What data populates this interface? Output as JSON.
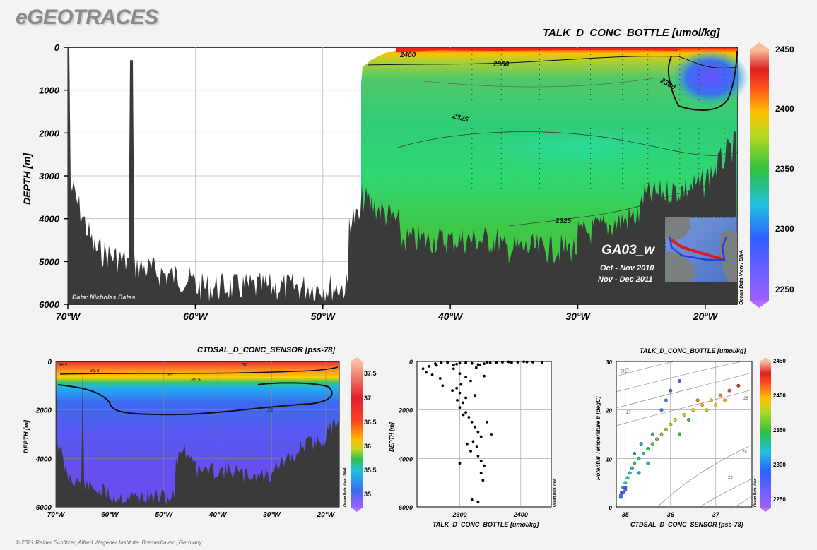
{
  "brand": "eGEOTRACES",
  "copyright": "© 2021 Reiner Schlitzer, Alfred Wegener Institute, Bremerhaven, Germany",
  "colors": {
    "land": "#3a3a3a",
    "background": "#f3f3f3",
    "contour": "#111111"
  },
  "chart_data": [
    {
      "type": "heatmap",
      "panel": "main-section",
      "title": "TALK_D_CONC_BOTTLE [umol/kg]",
      "ylabel": "DEPTH [m]",
      "xlabel": "",
      "x_ticks": [
        "70°W",
        "60°W",
        "50°W",
        "40°W",
        "30°W",
        "20°W"
      ],
      "x_tick_values": [
        -70,
        -60,
        -50,
        -40,
        -30,
        -20
      ],
      "y_ticks": [
        "0",
        "1000",
        "2000",
        "3000",
        "4000",
        "5000",
        "6000"
      ],
      "xlim": [
        -70,
        -17.5
      ],
      "ylim": [
        6000,
        0
      ],
      "contour_labels": [
        "2400",
        "2350",
        "2325",
        "2300",
        "2325"
      ],
      "colorbar": {
        "min": 2240,
        "max": 2450,
        "ticks": [
          "2250",
          "2300",
          "2350",
          "2400",
          "2450"
        ]
      },
      "section_label": "GA03_w",
      "cruise_dates": [
        "Oct - Nov 2010",
        "Nov - Dec 2011"
      ],
      "credit": "Data: Nicholas Bates",
      "watermark": "Ocean Data View / DIVA",
      "grid": true
    },
    {
      "type": "heatmap",
      "panel": "salinity-section",
      "title": "CTDSAL_D_CONC_SENSOR [pss-78]",
      "ylabel": "DEPTH [m]",
      "x_ticks": [
        "70°W",
        "60°W",
        "50°W",
        "40°W",
        "30°W",
        "20°W"
      ],
      "y_ticks": [
        "0",
        "2000",
        "4000",
        "6000"
      ],
      "contour_labels": [
        "36.5",
        "36.5",
        "37",
        "36",
        "35.5",
        "35"
      ],
      "colorbar": {
        "min": 34.7,
        "max": 37.8,
        "ticks": [
          "35",
          "35.5",
          "36",
          "36.5",
          "37",
          "37.5"
        ]
      },
      "watermark": "Ocean Data View / DIVA",
      "grid": true
    },
    {
      "type": "scatter",
      "panel": "alkalinity-profile",
      "xlabel": "TALK_D_CONC_BOTTLE [umol/kg]",
      "ylabel": "DEPTH [m]",
      "x_ticks": [
        "2300",
        "2400"
      ],
      "y_ticks": [
        "0",
        "2000",
        "4000",
        "6000"
      ],
      "xlim": [
        2230,
        2450
      ],
      "ylim": [
        6000,
        0
      ],
      "watermark": "Ocean Data View",
      "points": [
        [
          2405,
          10
        ],
        [
          2410,
          20
        ],
        [
          2395,
          30
        ],
        [
          2380,
          15
        ],
        [
          2360,
          40
        ],
        [
          2350,
          60
        ],
        [
          2340,
          90
        ],
        [
          2330,
          120
        ],
        [
          2320,
          80
        ],
        [
          2310,
          50
        ],
        [
          2300,
          70
        ],
        [
          2295,
          110
        ],
        [
          2290,
          150
        ],
        [
          2280,
          40
        ],
        [
          2270,
          60
        ],
        [
          2260,
          90
        ],
        [
          2262,
          160
        ],
        [
          2250,
          200
        ],
        [
          2240,
          300
        ],
        [
          2245,
          450
        ],
        [
          2255,
          550
        ],
        [
          2268,
          700
        ],
        [
          2272,
          1000
        ],
        [
          2290,
          300
        ],
        [
          2300,
          500
        ],
        [
          2310,
          650
        ],
        [
          2318,
          800
        ],
        [
          2302,
          950
        ],
        [
          2295,
          1100
        ],
        [
          2300,
          1300
        ],
        [
          2310,
          1500
        ],
        [
          2305,
          1700
        ],
        [
          2300,
          1900
        ],
        [
          2310,
          2100
        ],
        [
          2315,
          2300
        ],
        [
          2320,
          2500
        ],
        [
          2325,
          2700
        ],
        [
          2330,
          2900
        ],
        [
          2335,
          3100
        ],
        [
          2322,
          3300
        ],
        [
          2328,
          3500
        ],
        [
          2318,
          3700
        ],
        [
          2330,
          3900
        ],
        [
          2335,
          4100
        ],
        [
          2340,
          4300
        ],
        [
          2345,
          2500
        ],
        [
          2352,
          3000
        ],
        [
          2335,
          4600
        ],
        [
          2338,
          4900
        ],
        [
          2320,
          5700
        ],
        [
          2330,
          5800
        ],
        [
          2300,
          4200
        ],
        [
          2312,
          3400
        ],
        [
          2306,
          2200
        ],
        [
          2296,
          1600
        ],
        [
          2288,
          1200
        ],
        [
          2325,
          1400
        ],
        [
          2340,
          600
        ],
        [
          2370,
          30
        ],
        [
          2385,
          50
        ],
        [
          2420,
          25
        ],
        [
          2435,
          35
        ],
        [
          2345,
          30
        ],
        [
          2333,
          150
        ],
        [
          2327,
          250
        ]
      ]
    },
    {
      "type": "scatter",
      "panel": "theta-s-diagram",
      "title": "TALK_D_CONC_BOTTLE [umol/kg]",
      "xlabel": "CTDSAL_D_CONC_SENSOR [pss-78]",
      "ylabel": "Potential Temperature θ [degC]",
      "x_ticks": [
        "35",
        "36",
        "37"
      ],
      "y_ticks": [
        "0",
        "10",
        "20",
        "30"
      ],
      "xlim": [
        34.8,
        37.8
      ],
      "ylim": [
        0,
        30
      ],
      "isopycnal_symbol": "σ0",
      "isopycnal_labels": [
        "26",
        "27",
        "28",
        "29"
      ],
      "colorbar": {
        "min": 2240,
        "max": 2450,
        "ticks": [
          "2250",
          "2300",
          "2350",
          "2400",
          "2450"
        ]
      },
      "watermark": "Ocean Data View",
      "points": [
        [
          34.9,
          2,
          2300
        ],
        [
          34.92,
          3,
          2310
        ],
        [
          34.95,
          4,
          2315
        ],
        [
          35.0,
          5,
          2320
        ],
        [
          35.05,
          6,
          2325
        ],
        [
          35.1,
          7,
          2330
        ],
        [
          35.15,
          8,
          2335
        ],
        [
          35.2,
          9,
          2340
        ],
        [
          35.3,
          10,
          2345
        ],
        [
          35.4,
          11,
          2340
        ],
        [
          35.5,
          12,
          2350
        ],
        [
          35.6,
          13,
          2355
        ],
        [
          35.7,
          14,
          2360
        ],
        [
          35.8,
          15,
          2365
        ],
        [
          35.9,
          16,
          2370
        ],
        [
          36.0,
          17,
          2375
        ],
        [
          36.1,
          18,
          2380
        ],
        [
          36.3,
          19,
          2385
        ],
        [
          36.5,
          20,
          2390
        ],
        [
          36.7,
          21,
          2395
        ],
        [
          36.9,
          22,
          2400
        ],
        [
          37.1,
          23,
          2410
        ],
        [
          37.3,
          24,
          2420
        ],
        [
          37.5,
          25,
          2430
        ],
        [
          35.0,
          4,
          2290
        ],
        [
          34.95,
          3,
          2280
        ],
        [
          35.2,
          11,
          2300
        ],
        [
          35.35,
          13,
          2310
        ],
        [
          35.8,
          20,
          2300
        ],
        [
          35.9,
          22,
          2305
        ],
        [
          36.0,
          24,
          2290
        ],
        [
          36.2,
          26,
          2285
        ],
        [
          35.6,
          15,
          2335
        ],
        [
          36.4,
          18,
          2350
        ],
        [
          36.8,
          20,
          2380
        ],
        [
          37.0,
          21,
          2395
        ],
        [
          36.6,
          22,
          2410
        ],
        [
          37.2,
          22,
          2400
        ],
        [
          36.2,
          15,
          2345
        ],
        [
          35.3,
          7,
          2305
        ],
        [
          35.5,
          9,
          2330
        ],
        [
          34.9,
          2.5,
          2260
        ],
        [
          35.0,
          3.5,
          2270
        ]
      ]
    }
  ]
}
